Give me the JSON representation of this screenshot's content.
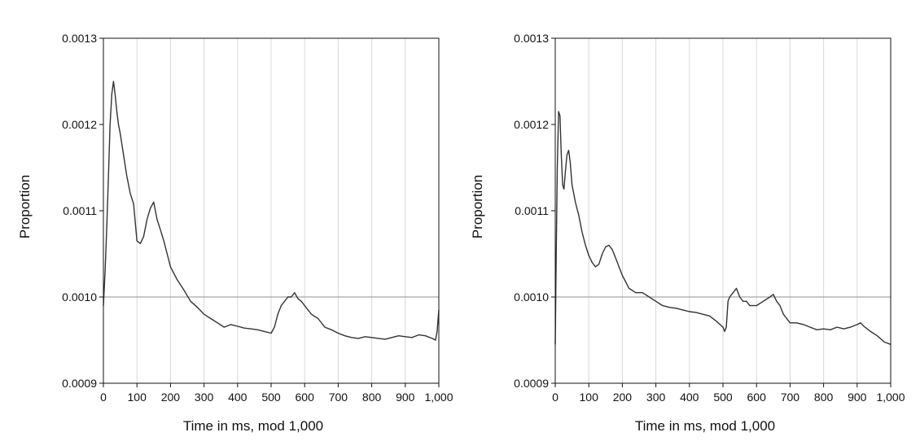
{
  "colors": {
    "line": "#333333",
    "grid": "#d9d9d9",
    "reference": "#a6a6a6",
    "axis": "#111111"
  },
  "chart_data": [
    {
      "type": "line",
      "xlabel": "Time in ms, mod 1,000",
      "ylabel": "Proportion",
      "xlim": [
        0,
        1000
      ],
      "ylim": [
        0.0009,
        0.0013
      ],
      "x_ticks": [
        0,
        100,
        200,
        300,
        400,
        500,
        600,
        700,
        800,
        900,
        1000
      ],
      "x_tick_labels": [
        "0",
        "100",
        "200",
        "300",
        "400",
        "500",
        "600",
        "700",
        "800",
        "900",
        "1,000"
      ],
      "y_ticks": [
        0.0009,
        0.001,
        0.0011,
        0.0012,
        0.0013
      ],
      "y_tick_labels": [
        "0.0009",
        "0.0010",
        "0.0011",
        "0.0012",
        "0.0013"
      ],
      "reference_line": 0.001,
      "grid": "vertical",
      "series": [
        {
          "x": [
            0,
            5,
            10,
            15,
            20,
            25,
            30,
            35,
            40,
            45,
            50,
            60,
            70,
            80,
            90,
            100,
            110,
            120,
            130,
            140,
            150,
            160,
            170,
            180,
            190,
            200,
            220,
            240,
            260,
            280,
            300,
            320,
            340,
            360,
            380,
            400,
            420,
            440,
            460,
            480,
            500,
            510,
            520,
            530,
            540,
            550,
            560,
            570,
            580,
            590,
            600,
            620,
            640,
            660,
            680,
            700,
            720,
            740,
            760,
            780,
            800,
            820,
            840,
            860,
            880,
            900,
            920,
            940,
            960,
            980,
            990,
            995,
            1000
          ],
          "y": [
            0.00099,
            0.00103,
            0.00108,
            0.00114,
            0.0012,
            0.001235,
            0.00125,
            0.001235,
            0.001215,
            0.0012,
            0.00119,
            0.001165,
            0.00114,
            0.00112,
            0.001108,
            0.001065,
            0.001062,
            0.00107,
            0.00109,
            0.001103,
            0.00111,
            0.00109,
            0.001078,
            0.001065,
            0.00105,
            0.001035,
            0.00102,
            0.001008,
            0.000995,
            0.000988,
            0.00098,
            0.000975,
            0.00097,
            0.000965,
            0.000968,
            0.000966,
            0.000964,
            0.000963,
            0.000962,
            0.00096,
            0.000958,
            0.000965,
            0.00098,
            0.00099,
            0.000995,
            0.001,
            0.001,
            0.001005,
            0.000998,
            0.000995,
            0.00099,
            0.00098,
            0.000975,
            0.000965,
            0.000962,
            0.000958,
            0.000955,
            0.000953,
            0.000952,
            0.000954,
            0.000953,
            0.000952,
            0.000951,
            0.000953,
            0.000955,
            0.000954,
            0.000953,
            0.000956,
            0.000955,
            0.000952,
            0.00095,
            0.00096,
            0.000985
          ]
        }
      ]
    },
    {
      "type": "line",
      "xlabel": "Time in ms, mod 1,000",
      "ylabel": "Proportion",
      "xlim": [
        0,
        1000
      ],
      "ylim": [
        0.0009,
        0.0013
      ],
      "x_ticks": [
        0,
        100,
        200,
        300,
        400,
        500,
        600,
        700,
        800,
        900,
        1000
      ],
      "x_tick_labels": [
        "0",
        "100",
        "200",
        "300",
        "400",
        "500",
        "600",
        "700",
        "800",
        "900",
        "1,000"
      ],
      "y_ticks": [
        0.0009,
        0.001,
        0.0011,
        0.0012,
        0.0013
      ],
      "y_tick_labels": [
        "0.0009",
        "0.0010",
        "0.0011",
        "0.0012",
        "0.0013"
      ],
      "reference_line": 0.001,
      "grid": "vertical",
      "series": [
        {
          "x": [
            0,
            3,
            6,
            10,
            14,
            18,
            22,
            26,
            30,
            35,
            40,
            45,
            50,
            55,
            60,
            70,
            80,
            90,
            100,
            110,
            120,
            130,
            140,
            150,
            160,
            170,
            180,
            200,
            220,
            240,
            260,
            280,
            300,
            320,
            340,
            360,
            380,
            400,
            420,
            440,
            460,
            480,
            500,
            505,
            510,
            515,
            520,
            530,
            540,
            550,
            560,
            570,
            580,
            600,
            620,
            640,
            650,
            660,
            670,
            680,
            700,
            720,
            740,
            760,
            780,
            800,
            820,
            840,
            860,
            880,
            900,
            910,
            920,
            940,
            960,
            980,
            1000
          ],
          "y": [
            0.000945,
            0.00105,
            0.00115,
            0.001215,
            0.00121,
            0.001165,
            0.00113,
            0.001125,
            0.001145,
            0.001165,
            0.00117,
            0.001155,
            0.00113,
            0.00112,
            0.00111,
            0.001095,
            0.001075,
            0.00106,
            0.001048,
            0.00104,
            0.001035,
            0.001038,
            0.00105,
            0.001058,
            0.00106,
            0.001055,
            0.001045,
            0.001025,
            0.00101,
            0.001005,
            0.001005,
            0.001,
            0.000995,
            0.00099,
            0.000988,
            0.000987,
            0.000985,
            0.000983,
            0.000982,
            0.00098,
            0.000978,
            0.000972,
            0.000965,
            0.00096,
            0.000965,
            0.000995,
            0.001,
            0.001005,
            0.00101,
            0.001,
            0.000995,
            0.000995,
            0.00099,
            0.00099,
            0.000995,
            0.001,
            0.001003,
            0.000995,
            0.00099,
            0.00098,
            0.00097,
            0.00097,
            0.000968,
            0.000965,
            0.000962,
            0.000963,
            0.000962,
            0.000965,
            0.000963,
            0.000965,
            0.000968,
            0.00097,
            0.000966,
            0.00096,
            0.000955,
            0.000948,
            0.000945
          ]
        }
      ]
    }
  ]
}
